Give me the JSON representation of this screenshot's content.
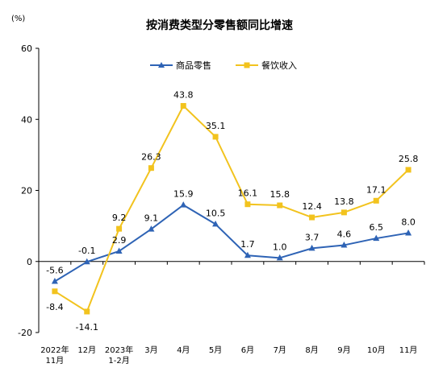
{
  "chart_data": {
    "type": "line",
    "title": "按消费类型分零售额同比增速",
    "unit_label": "(%)",
    "categories": [
      [
        "2022年",
        "11月"
      ],
      [
        "12月"
      ],
      [
        "2023年",
        "1-2月"
      ],
      [
        "3月"
      ],
      [
        "4月"
      ],
      [
        "5月"
      ],
      [
        "6月"
      ],
      [
        "7月"
      ],
      [
        "8月"
      ],
      [
        "9月"
      ],
      [
        "10月"
      ],
      [
        "11月"
      ]
    ],
    "ylim": [
      -20,
      60
    ],
    "yticks": [
      -20,
      0,
      20,
      40,
      60
    ],
    "grid": false,
    "legend_position": "top",
    "series": [
      {
        "name": "商品零售",
        "color": "#2E63B5",
        "marker": "triangle",
        "values": [
          -5.6,
          -0.1,
          2.9,
          9.1,
          15.9,
          10.5,
          1.7,
          1.0,
          3.7,
          4.6,
          6.5,
          8.0
        ],
        "labels": [
          "-5.6",
          "-0.1",
          "2.9",
          "9.1",
          "15.9",
          "10.5",
          "1.7",
          "1.0",
          "3.7",
          "4.6",
          "6.5",
          "8.0"
        ],
        "label_side": [
          "above",
          "above",
          "above",
          "above",
          "above",
          "above",
          "above",
          "above",
          "above",
          "above",
          "above",
          "above"
        ]
      },
      {
        "name": "餐饮收入",
        "color": "#F2C31E",
        "marker": "square",
        "values": [
          -8.4,
          -14.1,
          9.2,
          26.3,
          43.8,
          35.1,
          16.1,
          15.8,
          12.4,
          13.8,
          17.1,
          25.8
        ],
        "labels": [
          "-8.4",
          "-14.1",
          "9.2",
          "26.3",
          "43.8",
          "35.1",
          "16.1",
          "15.8",
          "12.4",
          "13.8",
          "17.1",
          "25.8"
        ],
        "label_side": [
          "below",
          "below",
          "above",
          "above",
          "above",
          "above",
          "above",
          "above",
          "above",
          "above",
          "above",
          "above"
        ]
      }
    ]
  }
}
